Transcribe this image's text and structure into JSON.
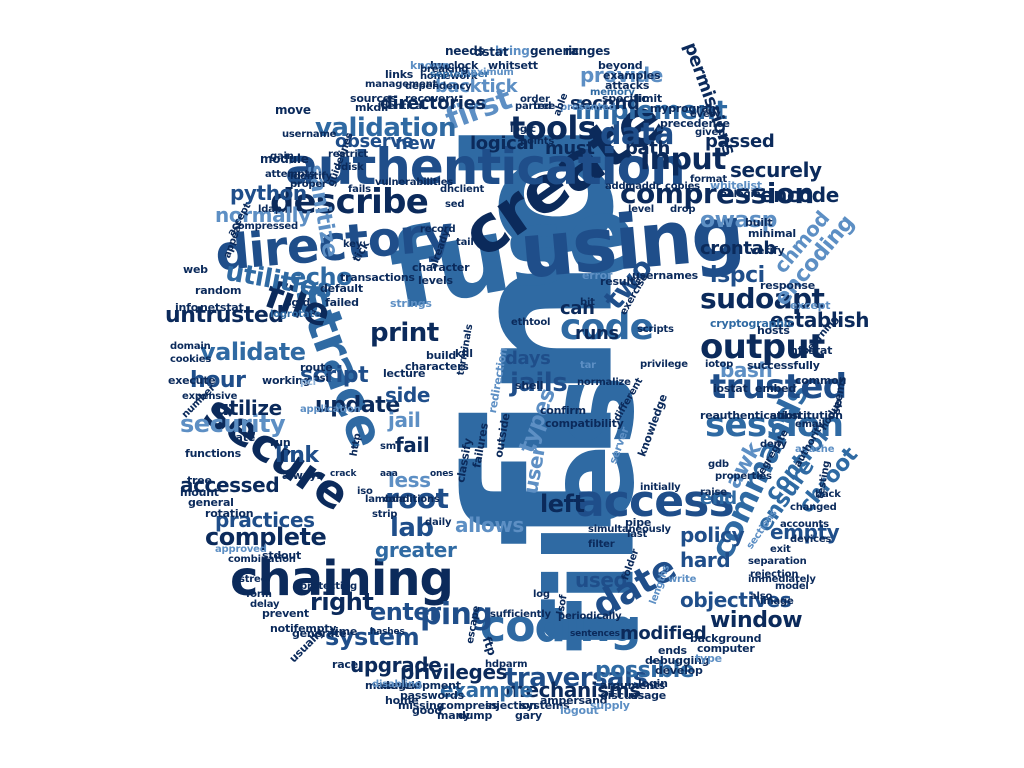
{
  "word_cloud": {
    "words": [
      "find",
      "files",
      "fuse",
      "using",
      "create",
      "authentication",
      "directory",
      "chaining",
      "strace",
      "secure",
      "coding",
      "access",
      "file",
      "commands",
      "session",
      "trusted",
      "output",
      "describe",
      "code",
      "compression",
      "tools",
      "first",
      "validation",
      "input",
      "data",
      "implement",
      "sudoapt",
      "utilities",
      "untrusted",
      "validate",
      "security",
      "root",
      "lab",
      "complete",
      "ping",
      "right",
      "enter",
      "system",
      "traversals",
      "date",
      "window",
      "objectives",
      "ensure",
      "control",
      "empty",
      "policy",
      "hard",
      "used",
      "mechanisms",
      "example",
      "privileges",
      "upgrade",
      "possible",
      "modified",
      "awk",
      "chroot",
      "lspci",
      "establish",
      "two",
      "jails",
      "types",
      "fail",
      "link",
      "print",
      "script",
      "update",
      "hour",
      "echo",
      "sanitize",
      "normally",
      "owasp",
      "encoding",
      "chmod",
      "crontab",
      "encode",
      "securely",
      "passed",
      "permissions",
      "path",
      "second",
      "provide",
      "backtick",
      "directories",
      "observe",
      "new",
      "must",
      "logical",
      "greater",
      "allows",
      "left",
      "end",
      "accessed",
      "practices",
      "utilize",
      "jail",
      "less",
      "user",
      "side",
      "can",
      "runs",
      "days",
      "bash",
      "python",
      "ftp",
      "memory",
      "hashes",
      "module",
      "move",
      "recovery",
      "dependency",
      "homework",
      "links",
      "sources",
      "mkdir",
      "identical",
      "hwclock",
      "september",
      "maximum",
      "bring",
      "needs",
      "dstat",
      "whitsett",
      "generic",
      "ranges",
      "beyond",
      "examples",
      "attacks",
      "specific",
      "limit",
      "myprogram",
      "precedence",
      "every",
      "given",
      "whitelist",
      "nologin",
      "built",
      "minimal",
      "verify",
      "response",
      "except",
      "nfsstat",
      "common",
      "seems",
      "nodup",
      "netstat",
      "random",
      "web",
      "info",
      "sgid",
      "logrotate",
      "default",
      "failed",
      "tick",
      "character",
      "transactions",
      "levels",
      "results",
      "usernames",
      "error",
      "cryptographic",
      "hosts",
      "substitution",
      "reauthentication",
      "embed",
      "successfully",
      "iostat",
      "shell",
      "confirm",
      "compatibility",
      "server",
      "knowledge",
      "classify",
      "failures",
      "outside",
      "redirection",
      "build",
      "characters",
      "terminals",
      "kill",
      "strings",
      "lecture",
      "sm",
      "application",
      "osi",
      "route",
      "working",
      "pci",
      "cookies",
      "domain",
      "execute",
      "number",
      "expensive",
      "functions",
      "late",
      "run",
      "always",
      "tree",
      "mount",
      "general",
      "rotation",
      "approved",
      "combination",
      "stdout",
      "protecting",
      "pstree",
      "prevent",
      "form",
      "delay",
      "notifempty",
      "usually",
      "generate",
      "time",
      "managed",
      "race",
      "missing",
      "home",
      "development",
      "good",
      "passwords",
      "many",
      "dump",
      "injection",
      "compress",
      "systems",
      "gary",
      "ampersand",
      "arguments",
      "logout",
      "supply",
      "discuss",
      "usage",
      "login",
      "develop",
      "debugging",
      "background",
      "computer",
      "type",
      "ends",
      "pipe",
      "simultaneously",
      "last",
      "filter",
      "periodically",
      "write",
      "lengths",
      "folder",
      "escape",
      "log",
      "lsof",
      "sufficiently",
      "sections",
      "accounts",
      "exit",
      "model",
      "rejection",
      "image",
      "also",
      "separation",
      "immediately",
      "email",
      "apache",
      "testing",
      "back",
      "properties",
      "gdb",
      "deny",
      "segregate",
      "authority",
      "raise",
      "initially",
      "daily",
      "iso",
      "lambda",
      "strip",
      "conditions",
      "http",
      "disabling",
      "tar",
      "vulnerabilities",
      "dhclient",
      "sed",
      "fails",
      "key",
      "identify",
      "proper",
      "gain",
      "attempts",
      "username",
      "ldap",
      "compressed",
      "appear",
      "accept",
      "guidelines",
      "restrict",
      "fdisk",
      "points",
      "logic",
      "free",
      "parted",
      "order",
      "presented",
      "able",
      "addr",
      "maddr",
      "level",
      "copies",
      "format",
      "drop",
      "already",
      "record",
      "tail",
      "exercise",
      "ethtool",
      "bit",
      "scripts",
      "iotop",
      "privilege",
      "different",
      "normalize",
      "hdparm",
      "devices",
      "changed",
      "known",
      "breaking",
      "management",
      "learning",
      "aaa",
      "crack",
      "ones",
      "sentences"
    ]
  }
}
